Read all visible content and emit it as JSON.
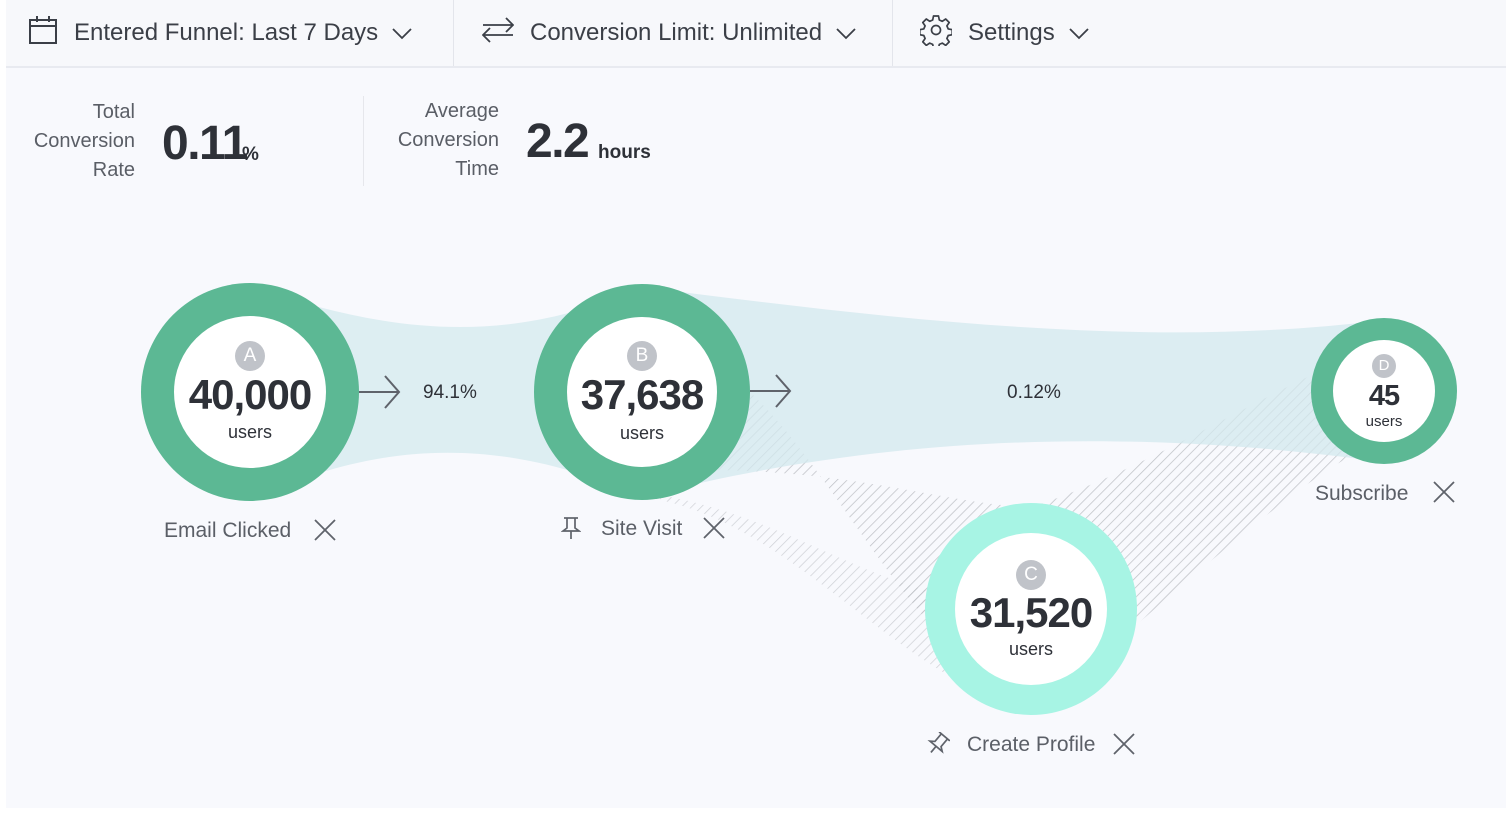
{
  "toolbar": {
    "date_range_label": "Entered Funnel: Last 7 Days",
    "conversion_limit_label": "Conversion Limit: Unlimited",
    "settings_label": "Settings"
  },
  "stats": {
    "conversion_rate": {
      "label_lines": [
        "Total",
        "Conversion",
        "Rate"
      ],
      "value": "0.11",
      "unit": "%"
    },
    "conversion_time": {
      "label_lines": [
        "Average",
        "Conversion",
        "Time"
      ],
      "value": "2.2",
      "unit": "hours"
    }
  },
  "steps": [
    {
      "letter": "A",
      "count": "40,000",
      "unit": "users",
      "name": "Email Clicked",
      "color": "#5cb894"
    },
    {
      "letter": "B",
      "count": "37,638",
      "unit": "users",
      "name": "Site Visit",
      "color": "#5cb894"
    },
    {
      "letter": "C",
      "count": "31,520",
      "unit": "users",
      "name": "Create Profile",
      "color": "#a7f4e4"
    },
    {
      "letter": "D",
      "count": "45",
      "unit": "users",
      "name": "Subscribe",
      "color": "#5cb894"
    }
  ],
  "conversions": [
    {
      "from": "A",
      "to": "B",
      "rate": "94.1%"
    },
    {
      "from": "B",
      "to": "D",
      "rate": "0.12%"
    }
  ],
  "colors": {
    "flow": "#d7ebf0",
    "branch_hatch": "#b5b8bd",
    "text_dark": "#2e3138"
  },
  "icons": [
    "calendar-icon",
    "swap-arrows-icon",
    "gear-icon",
    "chevron-down-icon",
    "arrow-right-icon",
    "pin-icon",
    "close-icon"
  ]
}
